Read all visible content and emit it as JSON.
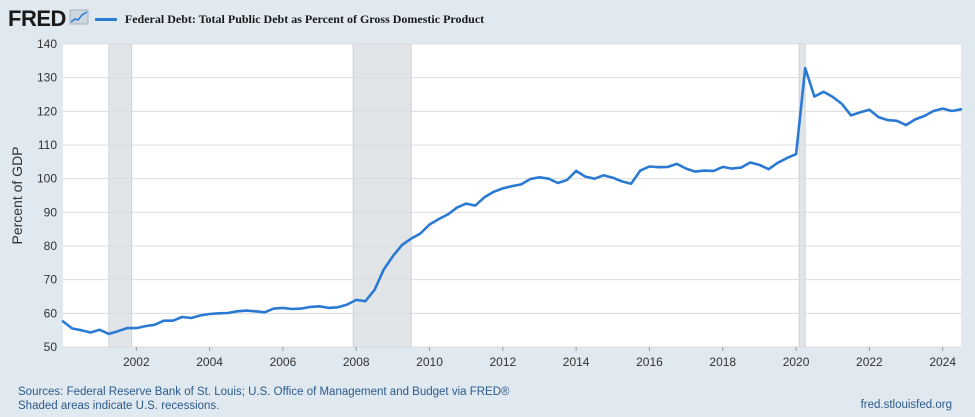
{
  "header": {
    "logo": "FRED",
    "series_name": "Federal Debt: Total Public Debt as Percent of Gross Domestic Product"
  },
  "footer": {
    "sources": "Sources: Federal Reserve Bank of St. Louis; U.S. Office of Management and Budget via FRED®",
    "recession_note": "Shaded areas indicate U.S. recessions.",
    "url": "fred.stlouisfed.org"
  },
  "colors": {
    "line": "#2a7ad3",
    "recession": "#e2e5e8",
    "grid": "#dcdcdc",
    "background": "#e1e9f0"
  },
  "chart_data": {
    "type": "line",
    "title": "Federal Debt: Total Public Debt as Percent of Gross Domestic Product",
    "xlabel": "",
    "ylabel": "Percent of GDP",
    "xlim": [
      2000.0,
      2024.5
    ],
    "ylim": [
      50,
      140
    ],
    "x_ticks": [
      2002,
      2004,
      2006,
      2008,
      2010,
      2012,
      2014,
      2016,
      2018,
      2020,
      2022,
      2024
    ],
    "y_ticks": [
      50,
      60,
      70,
      80,
      90,
      100,
      110,
      120,
      130,
      140
    ],
    "grid": true,
    "recessions": [
      [
        2001.25,
        2001.875
      ],
      [
        2007.917,
        2009.5
      ],
      [
        2020.083,
        2020.25
      ]
    ],
    "series": [
      {
        "name": "Federal Debt: Total Public Debt as Percent of Gross Domestic Product",
        "x": [
          2000.0,
          2000.25,
          2000.5,
          2000.75,
          2001.0,
          2001.25,
          2001.5,
          2001.75,
          2002.0,
          2002.25,
          2002.5,
          2002.75,
          2003.0,
          2003.25,
          2003.5,
          2003.75,
          2004.0,
          2004.25,
          2004.5,
          2004.75,
          2005.0,
          2005.25,
          2005.5,
          2005.75,
          2006.0,
          2006.25,
          2006.5,
          2006.75,
          2007.0,
          2007.25,
          2007.5,
          2007.75,
          2008.0,
          2008.25,
          2008.5,
          2008.75,
          2009.0,
          2009.25,
          2009.5,
          2009.75,
          2010.0,
          2010.25,
          2010.5,
          2010.75,
          2011.0,
          2011.25,
          2011.5,
          2011.75,
          2012.0,
          2012.25,
          2012.5,
          2012.75,
          2013.0,
          2013.25,
          2013.5,
          2013.75,
          2014.0,
          2014.25,
          2014.5,
          2014.75,
          2015.0,
          2015.25,
          2015.5,
          2015.75,
          2016.0,
          2016.25,
          2016.5,
          2016.75,
          2017.0,
          2017.25,
          2017.5,
          2017.75,
          2018.0,
          2018.25,
          2018.5,
          2018.75,
          2019.0,
          2019.25,
          2019.5,
          2019.75,
          2020.0,
          2020.25,
          2020.5,
          2020.75,
          2021.0,
          2021.25,
          2021.5,
          2021.75,
          2022.0,
          2022.25,
          2022.5,
          2022.75,
          2023.0,
          2023.25,
          2023.5,
          2023.75,
          2024.0,
          2024.25,
          2024.5
        ],
        "y": [
          57.6,
          55.5,
          55.0,
          54.3,
          55.1,
          53.9,
          54.7,
          55.6,
          55.6,
          56.2,
          56.6,
          57.8,
          57.8,
          58.9,
          58.6,
          59.4,
          59.8,
          60.0,
          60.1,
          60.6,
          60.8,
          60.6,
          60.3,
          61.4,
          61.6,
          61.3,
          61.4,
          61.9,
          62.1,
          61.6,
          61.8,
          62.6,
          64.0,
          63.6,
          67.0,
          73.0,
          77.0,
          80.3,
          82.2,
          83.7,
          86.4,
          88.0,
          89.4,
          91.4,
          92.6,
          92.0,
          94.5,
          96.1,
          97.1,
          97.8,
          98.3,
          99.9,
          100.4,
          100.0,
          98.7,
          99.6,
          102.3,
          100.6,
          100.0,
          101.0,
          100.3,
          99.2,
          98.5,
          102.4,
          103.6,
          103.4,
          103.5,
          104.4,
          103.0,
          102.1,
          102.4,
          102.3,
          103.5,
          103.0,
          103.3,
          104.8,
          104.1,
          102.8,
          104.7,
          106.1,
          107.3,
          132.8,
          124.4,
          125.8,
          124.3,
          122.2,
          118.8,
          119.7,
          120.5,
          118.3,
          117.4,
          117.2,
          115.9,
          117.6,
          118.6,
          120.1,
          120.8,
          120.1,
          120.6
        ]
      }
    ]
  }
}
